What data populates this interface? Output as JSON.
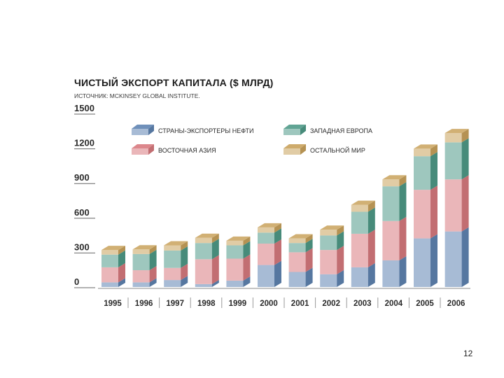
{
  "slide": {
    "page_number": "12"
  },
  "colors": {
    "oil": "#5f84b2",
    "east_asia": "#d87a7f",
    "west_europe": "#4f9a88",
    "rest": "#c9a25c"
  },
  "chart_data": {
    "type": "bar",
    "stacked": true,
    "title": "ЧИСТЫЙ ЭКСПОРТ КАПИТАЛА ($ МЛРД)",
    "subtitle": "ИСТОЧНИК: MCKINSEY GLOBAL INSTITUTE.",
    "xlabel": "",
    "ylabel": "",
    "ylim": [
      0,
      1500
    ],
    "yticks": [
      "1500",
      "1200",
      "900",
      "600",
      "300",
      "0"
    ],
    "grid": false,
    "legend_position": "top",
    "categories": [
      "1995",
      "1996",
      "1997",
      "1998",
      "1999",
      "2000",
      "2001",
      "2002",
      "2003",
      "2004",
      "2005",
      "2006"
    ],
    "series": [
      {
        "name": "СТРАНЫ-ЭКСПОРТЕРЫ НЕФТИ",
        "color_key": "oil",
        "values": [
          40,
          40,
          60,
          25,
          55,
          190,
          130,
          110,
          170,
          230,
          420,
          480
        ]
      },
      {
        "name": "ВОСТОЧНАЯ АЗИЯ",
        "color_key": "east_asia",
        "values": [
          130,
          105,
          105,
          215,
          190,
          185,
          170,
          210,
          290,
          340,
          420,
          450
        ]
      },
      {
        "name": "ЗАПАДНАЯ ЕВРОПА",
        "color_key": "west_europe",
        "values": [
          110,
          140,
          150,
          140,
          115,
          95,
          80,
          125,
          190,
          300,
          290,
          320
        ]
      },
      {
        "name": "ОСТАЛЬНОЙ МИР",
        "color_key": "rest",
        "values": [
          40,
          40,
          45,
          45,
          40,
          45,
          40,
          50,
          60,
          60,
          65,
          80
        ]
      }
    ]
  }
}
